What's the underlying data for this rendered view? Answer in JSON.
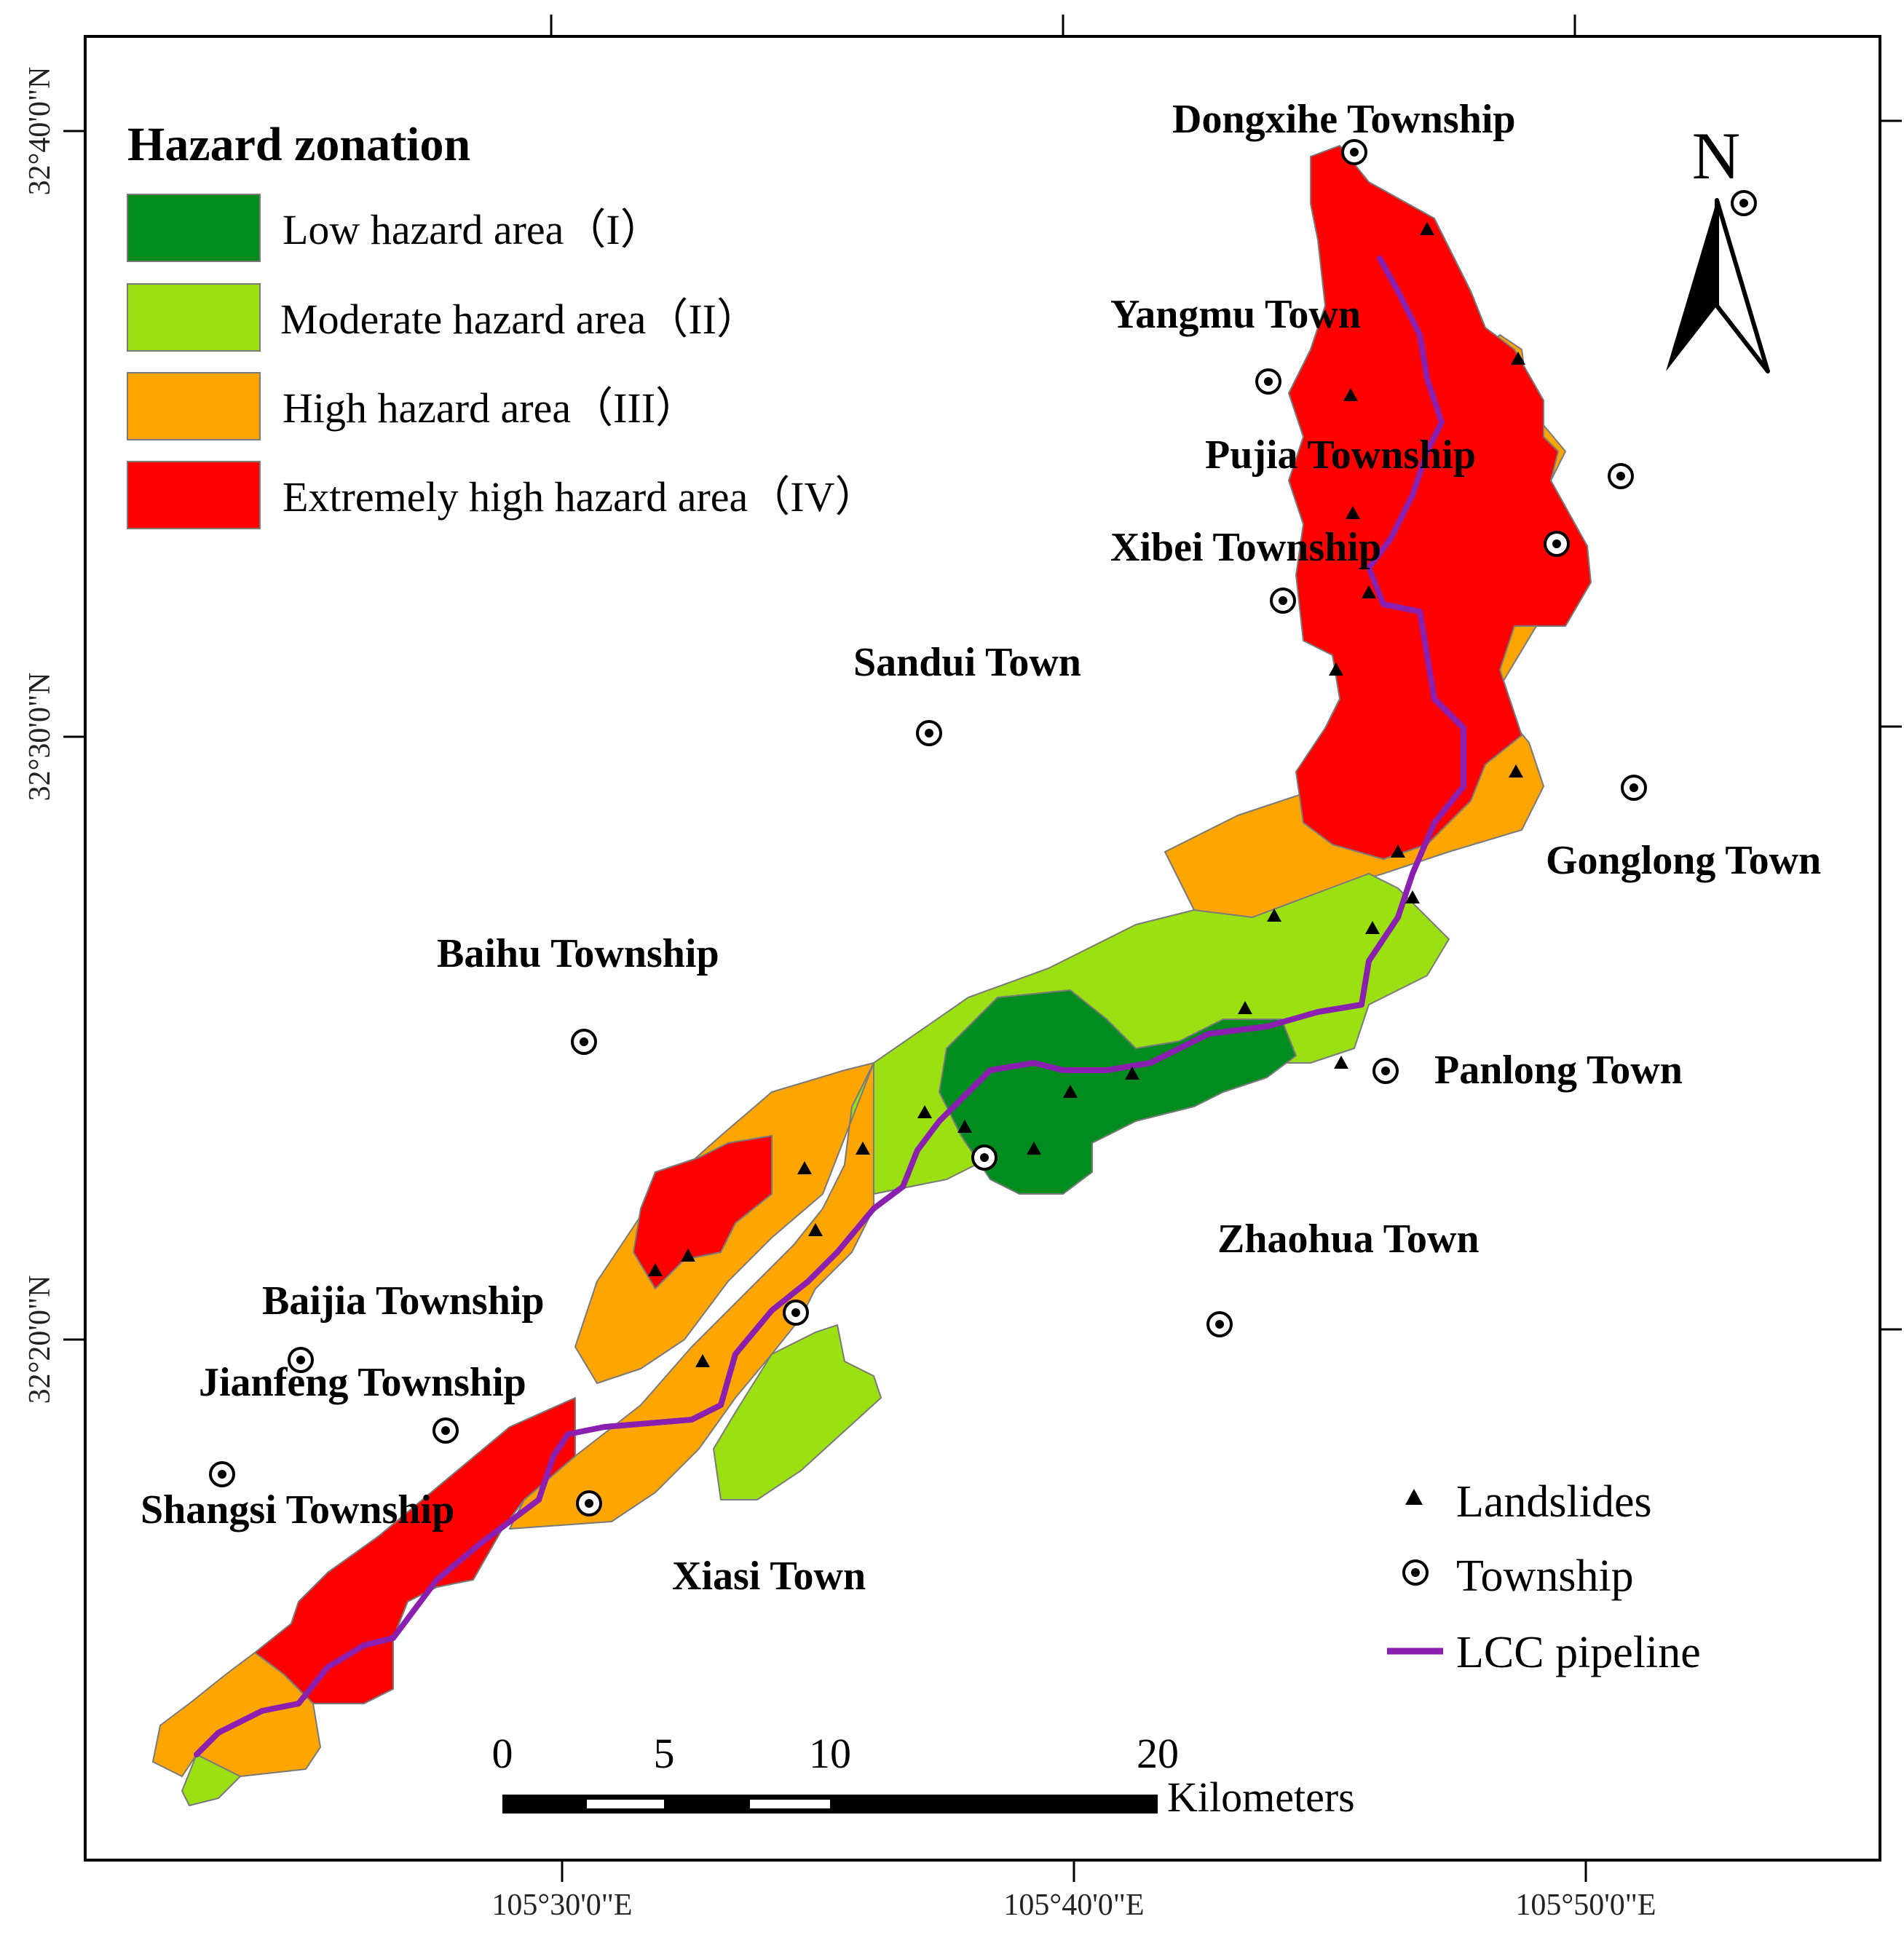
{
  "legend": {
    "title": "Hazard zonation",
    "items": [
      {
        "label": "Low hazard area（I）",
        "color": "#008c1e"
      },
      {
        "label": "Moderate hazard area（II）",
        "color": "#9be010"
      },
      {
        "label": "High hazard area（III）",
        "color": "#ffa500"
      },
      {
        "label": "Extremely high hazard area（IV）",
        "color": "#ff0000"
      }
    ]
  },
  "symbols": {
    "landslides": "Landslides",
    "township": "Township",
    "pipeline": "LCC pipeline",
    "pipeline_color": "#8a1fb0"
  },
  "north_arrow": "N",
  "scale": {
    "ticks": [
      "0",
      "5",
      "10",
      "20"
    ],
    "unit": "Kilometers"
  },
  "coords": {
    "lat": [
      "32°40'0\"N",
      "32°30'0\"N",
      "32°20'0\"N"
    ],
    "lon": [
      "105°30'0\"E",
      "105°40'0\"E",
      "105°50'0\"E"
    ]
  },
  "towns": [
    "Dongxihe Township",
    "Yangmu Town",
    "Pujia Township",
    "Xibei Township",
    "Sandui Town",
    "Gonglong Town",
    "Baihu Township",
    "Panlong Town",
    "Zhaohua Town",
    "Baijia Township",
    "Jianfeng Township",
    "Shangsi Township",
    "Xiasi Town"
  ]
}
